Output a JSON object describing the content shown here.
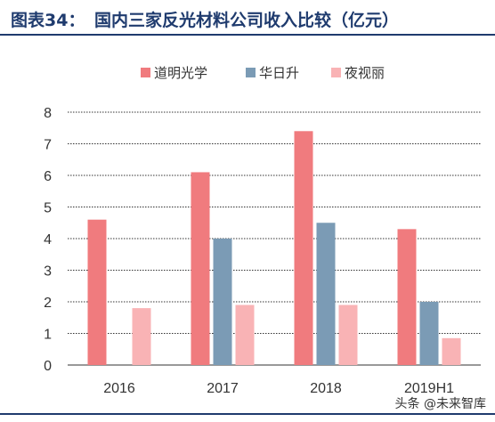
{
  "header": {
    "figure_label": "图表34：",
    "title": "国内三家反光材料公司收入比较（亿元）"
  },
  "watermark": "头条 @未来智库",
  "chart_data": {
    "type": "bar",
    "categories": [
      "2016",
      "2017",
      "2018",
      "2019H1"
    ],
    "series": [
      {
        "name": "道明光学",
        "values": [
          4.6,
          6.1,
          7.4,
          4.3
        ],
        "color": "#f07b7e"
      },
      {
        "name": "华日升",
        "values": [
          0,
          4.0,
          4.5,
          2.0
        ],
        "color": "#7b9bb5"
      },
      {
        "name": "夜视丽",
        "values": [
          1.8,
          1.9,
          1.9,
          0.85
        ],
        "color": "#f9b3b5"
      }
    ],
    "ylim": [
      0,
      8
    ],
    "yticks": [
      0,
      1,
      2,
      3,
      4,
      5,
      6,
      7,
      8
    ],
    "grid": true,
    "legend_position": "top"
  }
}
